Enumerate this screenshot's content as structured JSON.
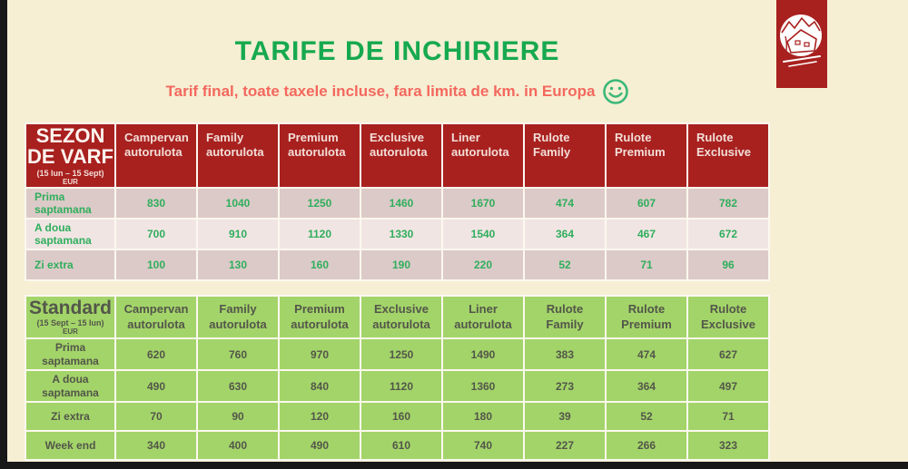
{
  "page": {
    "title": "TARIFE DE INCHIRIERE",
    "subtitle": "Tarif final, toate taxele incluse, fara limita de km. in Europa",
    "smiley_icon": "green-smiley-icon",
    "logo_icon": "mountain-house-logo-icon"
  },
  "colors": {
    "background": "#f6efd4",
    "accent_red": "#a8211f",
    "title_green": "#17a94f",
    "subtitle_red": "#f4685e",
    "table1_row_dark": "#dccac8",
    "table1_row_light": "#f1e5e4",
    "table1_value_green": "#2fae5c",
    "table2_cell_green": "#a3d469",
    "table2_text": "#53564a"
  },
  "tables": [
    {
      "id": "peak-season",
      "header": {
        "title": "SEZON DE VARF",
        "period": "(15 Iun – 15 Sept)",
        "currency": "EUR"
      },
      "columns": [
        {
          "line1": "Campervan",
          "line2": "autorulota"
        },
        {
          "line1": "Family",
          "line2": "autorulota"
        },
        {
          "line1": "Premium",
          "line2": "autorulota"
        },
        {
          "line1": "Exclusive",
          "line2": "autorulota"
        },
        {
          "line1": "Liner",
          "line2": "autorulota"
        },
        {
          "line1": "Rulote",
          "line2": "Family"
        },
        {
          "line1": "Rulote",
          "line2": "Premium"
        },
        {
          "line1": "Rulote",
          "line2": "Exclusive"
        }
      ],
      "rows": [
        {
          "label": "Prima saptamana",
          "values": [
            830,
            1040,
            1250,
            1460,
            1670,
            474,
            607,
            782
          ]
        },
        {
          "label": "A doua saptamana",
          "values": [
            700,
            910,
            1120,
            1330,
            1540,
            364,
            467,
            672
          ]
        },
        {
          "label": "Zi extra",
          "values": [
            100,
            130,
            160,
            190,
            220,
            52,
            71,
            96
          ]
        }
      ]
    },
    {
      "id": "standard-season",
      "header": {
        "title": "Standard",
        "period": "(15 Sept – 15 Iun)",
        "currency": "EUR"
      },
      "columns": [
        {
          "line1": "Campervan",
          "line2": "autorulota"
        },
        {
          "line1": "Family",
          "line2": "autorulota"
        },
        {
          "line1": "Premium",
          "line2": "autorulota"
        },
        {
          "line1": "Exclusive",
          "line2": "autorulota"
        },
        {
          "line1": "Liner",
          "line2": "autorulota"
        },
        {
          "line1": "Rulote",
          "line2": "Family"
        },
        {
          "line1": "Rulote",
          "line2": "Premium"
        },
        {
          "line1": "Rulote",
          "line2": "Exclusive"
        }
      ],
      "rows": [
        {
          "label": "Prima saptamana",
          "values": [
            620,
            760,
            970,
            1250,
            1490,
            383,
            474,
            627
          ]
        },
        {
          "label": "A doua saptamana",
          "values": [
            490,
            630,
            840,
            1120,
            1360,
            273,
            364,
            497
          ]
        },
        {
          "label": "Zi extra",
          "values": [
            70,
            90,
            120,
            160,
            180,
            39,
            52,
            71
          ]
        },
        {
          "label": "Week end",
          "values": [
            340,
            400,
            490,
            610,
            740,
            227,
            266,
            323
          ]
        }
      ]
    }
  ]
}
